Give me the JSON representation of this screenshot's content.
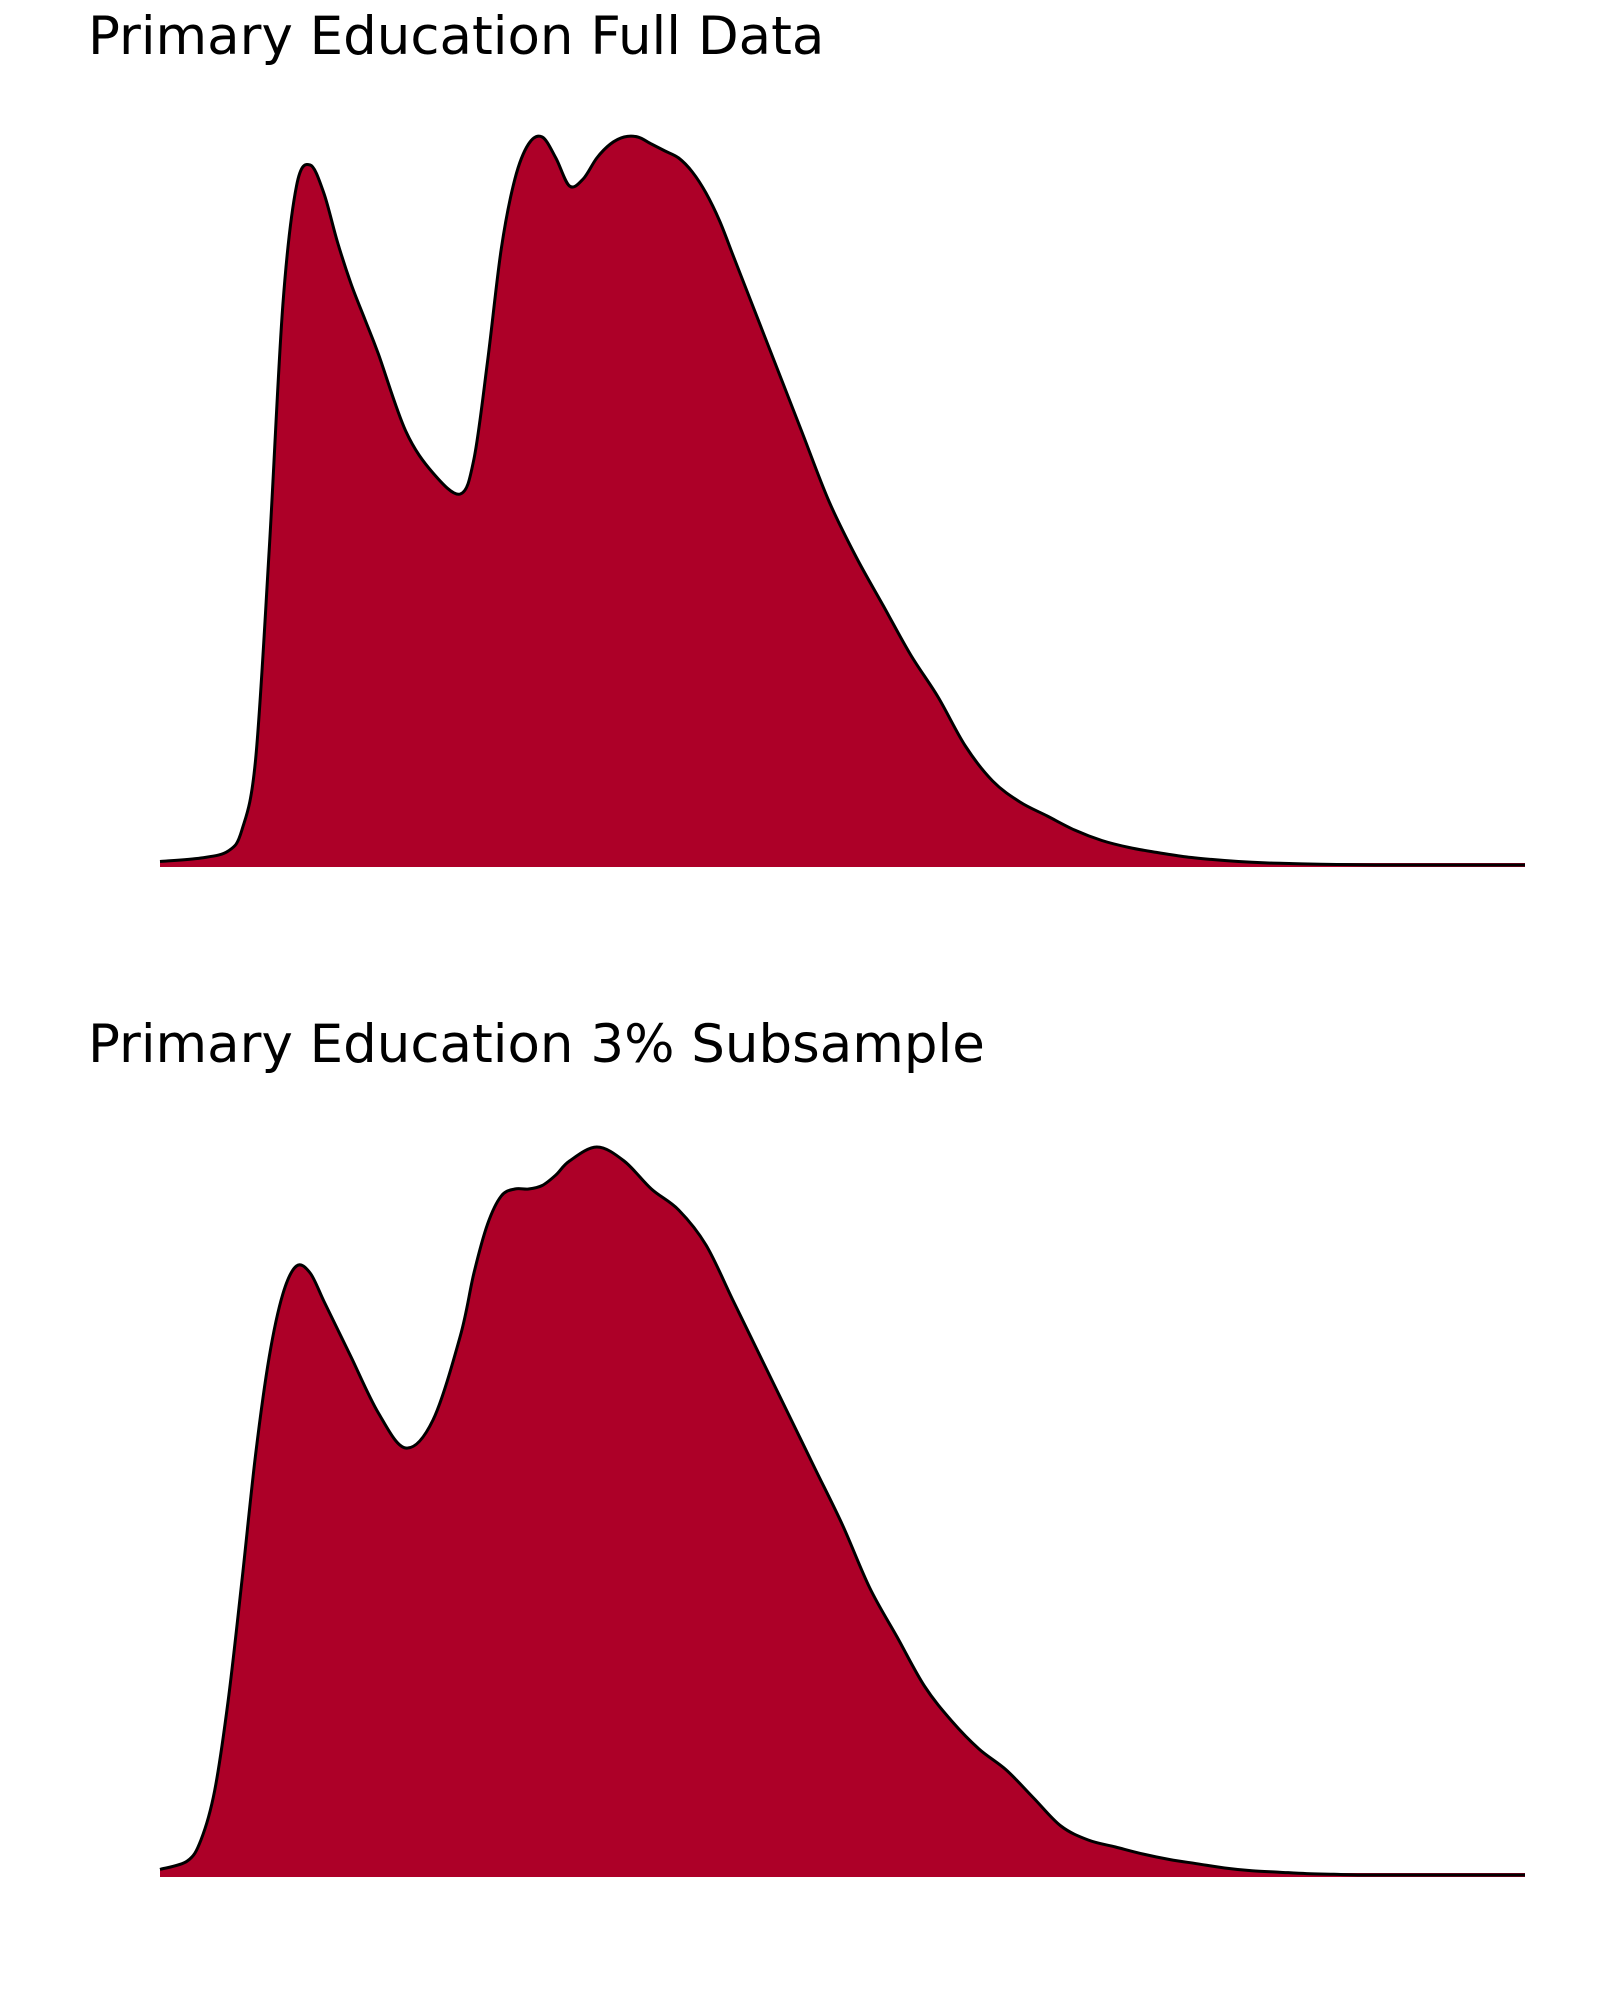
{
  "chart_data": [
    {
      "type": "area",
      "title": "Primary Education Full Data",
      "xlabel": "",
      "ylabel": "",
      "axes_visible": false,
      "grid": false,
      "legend": "none",
      "fill_color": "#AD0028",
      "line_color": "#000000",
      "xlim": [
        0,
        100
      ],
      "ylim": [
        0,
        1.05
      ],
      "x": [
        0,
        3,
        5,
        6,
        7,
        8,
        9,
        10,
        11,
        12,
        13,
        14,
        15,
        16,
        18,
        20,
        22,
        23,
        24,
        25,
        26,
        27,
        28,
        29,
        30,
        31,
        32,
        33,
        34,
        35,
        36,
        37,
        38,
        39,
        40,
        41,
        42,
        43,
        45,
        47,
        49,
        51,
        53,
        55,
        57,
        59,
        61,
        63,
        65,
        67,
        69,
        71,
        73,
        75,
        77,
        79,
        81,
        83,
        85,
        87,
        89,
        91,
        93,
        95,
        97,
        100
      ],
      "y": [
        0.005,
        0.01,
        0.02,
        0.05,
        0.15,
        0.45,
        0.8,
        0.97,
        1.0,
        0.96,
        0.89,
        0.83,
        0.78,
        0.73,
        0.62,
        0.56,
        0.53,
        0.58,
        0.72,
        0.88,
        0.98,
        1.03,
        1.04,
        1.01,
        0.97,
        0.98,
        1.01,
        1.03,
        1.04,
        1.04,
        1.03,
        1.02,
        1.01,
        0.99,
        0.96,
        0.92,
        0.87,
        0.82,
        0.72,
        0.62,
        0.52,
        0.44,
        0.37,
        0.3,
        0.24,
        0.17,
        0.12,
        0.09,
        0.07,
        0.05,
        0.035,
        0.025,
        0.018,
        0.012,
        0.008,
        0.005,
        0.003,
        0.002,
        0.001,
        0.0005,
        0.0,
        0.0,
        0.0,
        0.0,
        0.0,
        0.0
      ]
    },
    {
      "type": "area",
      "title": "Primary Education 3% Subsample",
      "xlabel": "",
      "ylabel": "",
      "axes_visible": false,
      "grid": false,
      "legend": "none",
      "fill_color": "#AD0028",
      "line_color": "#000000",
      "xlim": [
        0,
        100
      ],
      "ylim": [
        0,
        1.05
      ],
      "x": [
        0,
        2,
        3,
        4,
        5,
        6,
        7,
        8,
        9,
        10,
        11,
        12,
        13,
        14,
        16,
        18,
        20,
        22,
        23,
        24,
        25,
        26,
        27,
        28,
        29,
        30,
        32,
        34,
        36,
        38,
        40,
        42,
        44,
        46,
        48,
        50,
        52,
        54,
        56,
        58,
        60,
        62,
        64,
        66,
        68,
        70,
        72,
        74,
        76,
        78,
        80,
        82,
        84,
        86,
        88,
        90,
        92,
        94,
        96,
        98,
        100
      ],
      "y": [
        0.008,
        0.02,
        0.05,
        0.12,
        0.25,
        0.42,
        0.6,
        0.74,
        0.83,
        0.87,
        0.86,
        0.82,
        0.78,
        0.74,
        0.66,
        0.61,
        0.65,
        0.77,
        0.86,
        0.93,
        0.97,
        0.98,
        0.98,
        0.985,
        1.0,
        1.02,
        1.04,
        1.02,
        0.98,
        0.95,
        0.9,
        0.82,
        0.74,
        0.66,
        0.58,
        0.5,
        0.41,
        0.34,
        0.27,
        0.22,
        0.18,
        0.15,
        0.11,
        0.07,
        0.05,
        0.04,
        0.03,
        0.022,
        0.016,
        0.01,
        0.006,
        0.004,
        0.002,
        0.001,
        0.0,
        0.0,
        0.0,
        0.0,
        0.0,
        0.0,
        0.0
      ]
    }
  ]
}
